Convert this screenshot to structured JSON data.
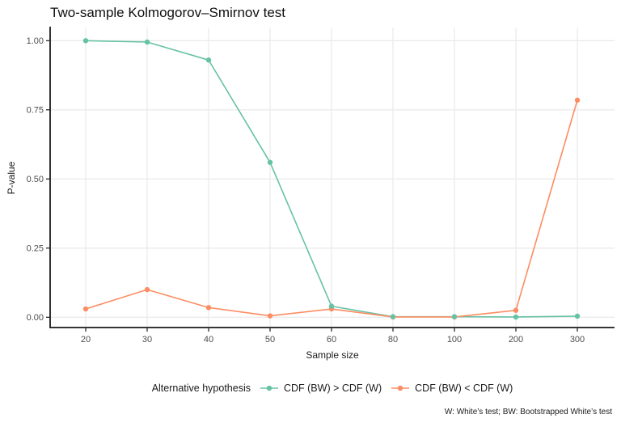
{
  "title": "Two-sample Kolmogorov–Smirnov test",
  "x_axis": {
    "label": "Sample size"
  },
  "y_axis": {
    "label": "P-value"
  },
  "legend": {
    "title": "Alternative hypothesis",
    "entries": [
      {
        "label": "CDF (BW) > CDF (W)",
        "color": "#66c2a5"
      },
      {
        "label": "CDF (BW) < CDF (W)",
        "color": "#fc8d62"
      }
    ]
  },
  "caption": "W: White’s test; BW: Bootstrapped White’s test",
  "colors": {
    "series_greater": "#66c2a5",
    "series_less": "#fc8d62",
    "gridline": "#ebebeb",
    "axis_line": "#1a1a1a",
    "tick_label": "#4d4d4d"
  },
  "chart_data": {
    "type": "line",
    "title": "Two-sample Kolmogorov–Smirnov test",
    "xlabel": "Sample size",
    "ylabel": "P-value",
    "categories": [
      20,
      30,
      40,
      50,
      60,
      80,
      100,
      200,
      300
    ],
    "x_tick_labels": [
      "20",
      "30",
      "40",
      "50",
      "60",
      "80",
      "100",
      "200",
      "300"
    ],
    "x_scale": "discrete-equal-spacing",
    "y_ticks": [
      0,
      0.25,
      0.5,
      0.75,
      1.0
    ],
    "y_tick_labels": [
      "0.00",
      "0.25",
      "0.50",
      "0.75",
      "1.00"
    ],
    "ylim": [
      0,
      1
    ],
    "grid": true,
    "legend_position": "bottom",
    "legend_title": "Alternative hypothesis",
    "series": [
      {
        "name": "CDF (BW) > CDF (W)",
        "color": "#66c2a5",
        "values": [
          1.0,
          0.995,
          0.93,
          0.56,
          0.04,
          0.002,
          0.002,
          0.001,
          0.004
        ]
      },
      {
        "name": "CDF (BW) < CDF (W)",
        "color": "#fc8d62",
        "values": [
          0.03,
          0.1,
          0.035,
          0.005,
          0.03,
          0.001,
          0.001,
          0.025,
          0.785
        ]
      }
    ]
  }
}
